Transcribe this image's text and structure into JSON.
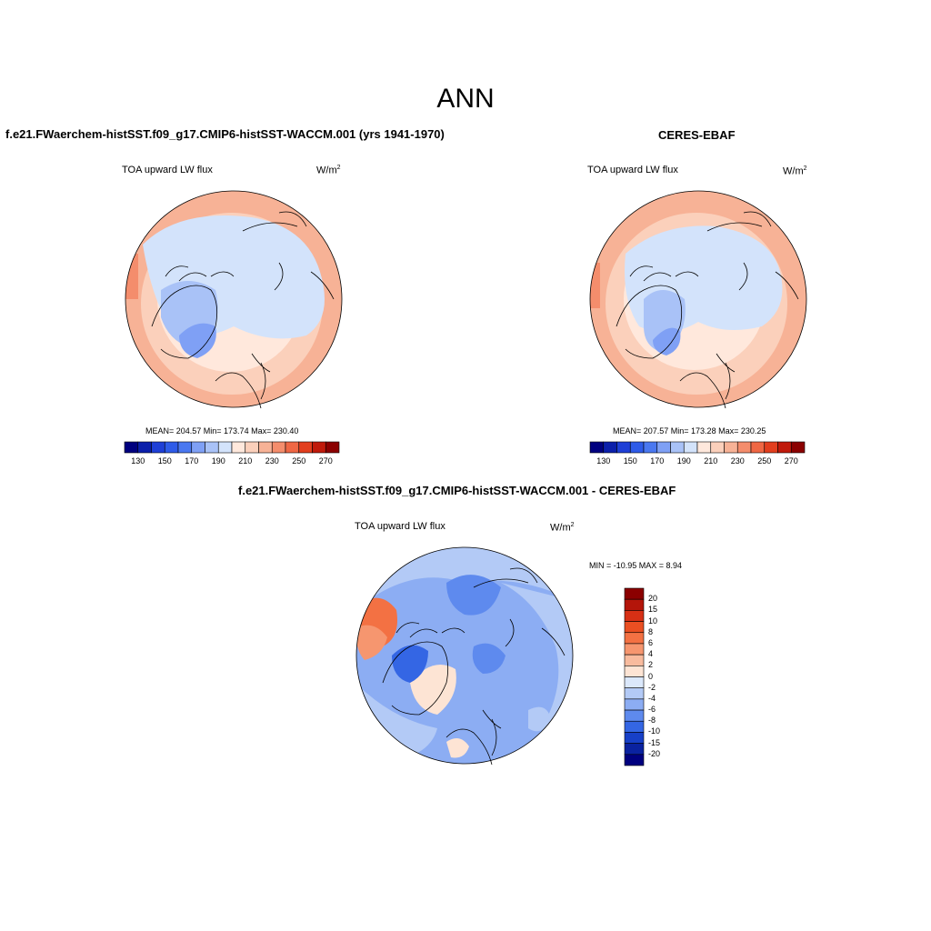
{
  "figure": {
    "title": "ANN",
    "variable": "TOA upward LW flux",
    "units_base": "W/m",
    "units_exp": "2"
  },
  "panels": {
    "model": {
      "title": "f.e21.FWaerchem-histSST.f09_g17.CMIP6-histSST-WACCM.001 (yrs 1941-1970)",
      "stats": "MEAN= 204.57  Min= 173.74  Max= 230.40"
    },
    "obs": {
      "title": "CERES-EBAF",
      "stats": "MEAN= 207.57  Min= 173.28  Max= 230.25"
    },
    "diff": {
      "title": "f.e21.FWaerchem-histSST.f09_g17.CMIP6-histSST-WACCM.001 - CERES-EBAF",
      "stats": "MIN = -10.95 MAX =   8.94"
    }
  },
  "colorbars": {
    "abs": {
      "tick_labels": [
        "130",
        "150",
        "170",
        "190",
        "210",
        "230",
        "250",
        "270"
      ],
      "colors": [
        "#00007f",
        "#0b1faa",
        "#1e3fd6",
        "#2e5be8",
        "#4a78f0",
        "#7fa0f5",
        "#a9c2f7",
        "#d3e3fb",
        "#ffe8dc",
        "#fbd0bb",
        "#f7b296",
        "#f48d6c",
        "#ef6744",
        "#e23e1e",
        "#c01a0b",
        "#8b0000"
      ]
    },
    "diff": {
      "tick_labels": [
        "20",
        "15",
        "10",
        "8",
        "6",
        "4",
        "2",
        "0",
        "-2",
        "-4",
        "-6",
        "-8",
        "-10",
        "-15",
        "-20"
      ],
      "colors": [
        "#8b0000",
        "#b4150a",
        "#d73015",
        "#ea4f22",
        "#f37143",
        "#f6966f",
        "#f8bb9e",
        "#fde4d4",
        "#dbe8fb",
        "#b3caf6",
        "#8cadf3",
        "#5e8aee",
        "#3466e4",
        "#1740c8",
        "#0a22a0",
        "#00007f"
      ]
    }
  },
  "map_colors": {
    "land": "#eef4fc",
    "ocean_outer": "#f7b296",
    "ocean_mid": "#fbd0bb",
    "ocean_inner": "#ffe8dc",
    "ice": "#d3e3fb",
    "cold": "#a9c2f7",
    "colder": "#7fa0f5",
    "diff_base": "#8cadf3",
    "diff_light": "#b3caf6",
    "diff_dark": "#5e8aee",
    "diff_darker": "#3466e4",
    "diff_warm": "#f6966f",
    "diff_warmer": "#f37143",
    "diff_pale": "#fde4d4",
    "coast": "#000000"
  }
}
